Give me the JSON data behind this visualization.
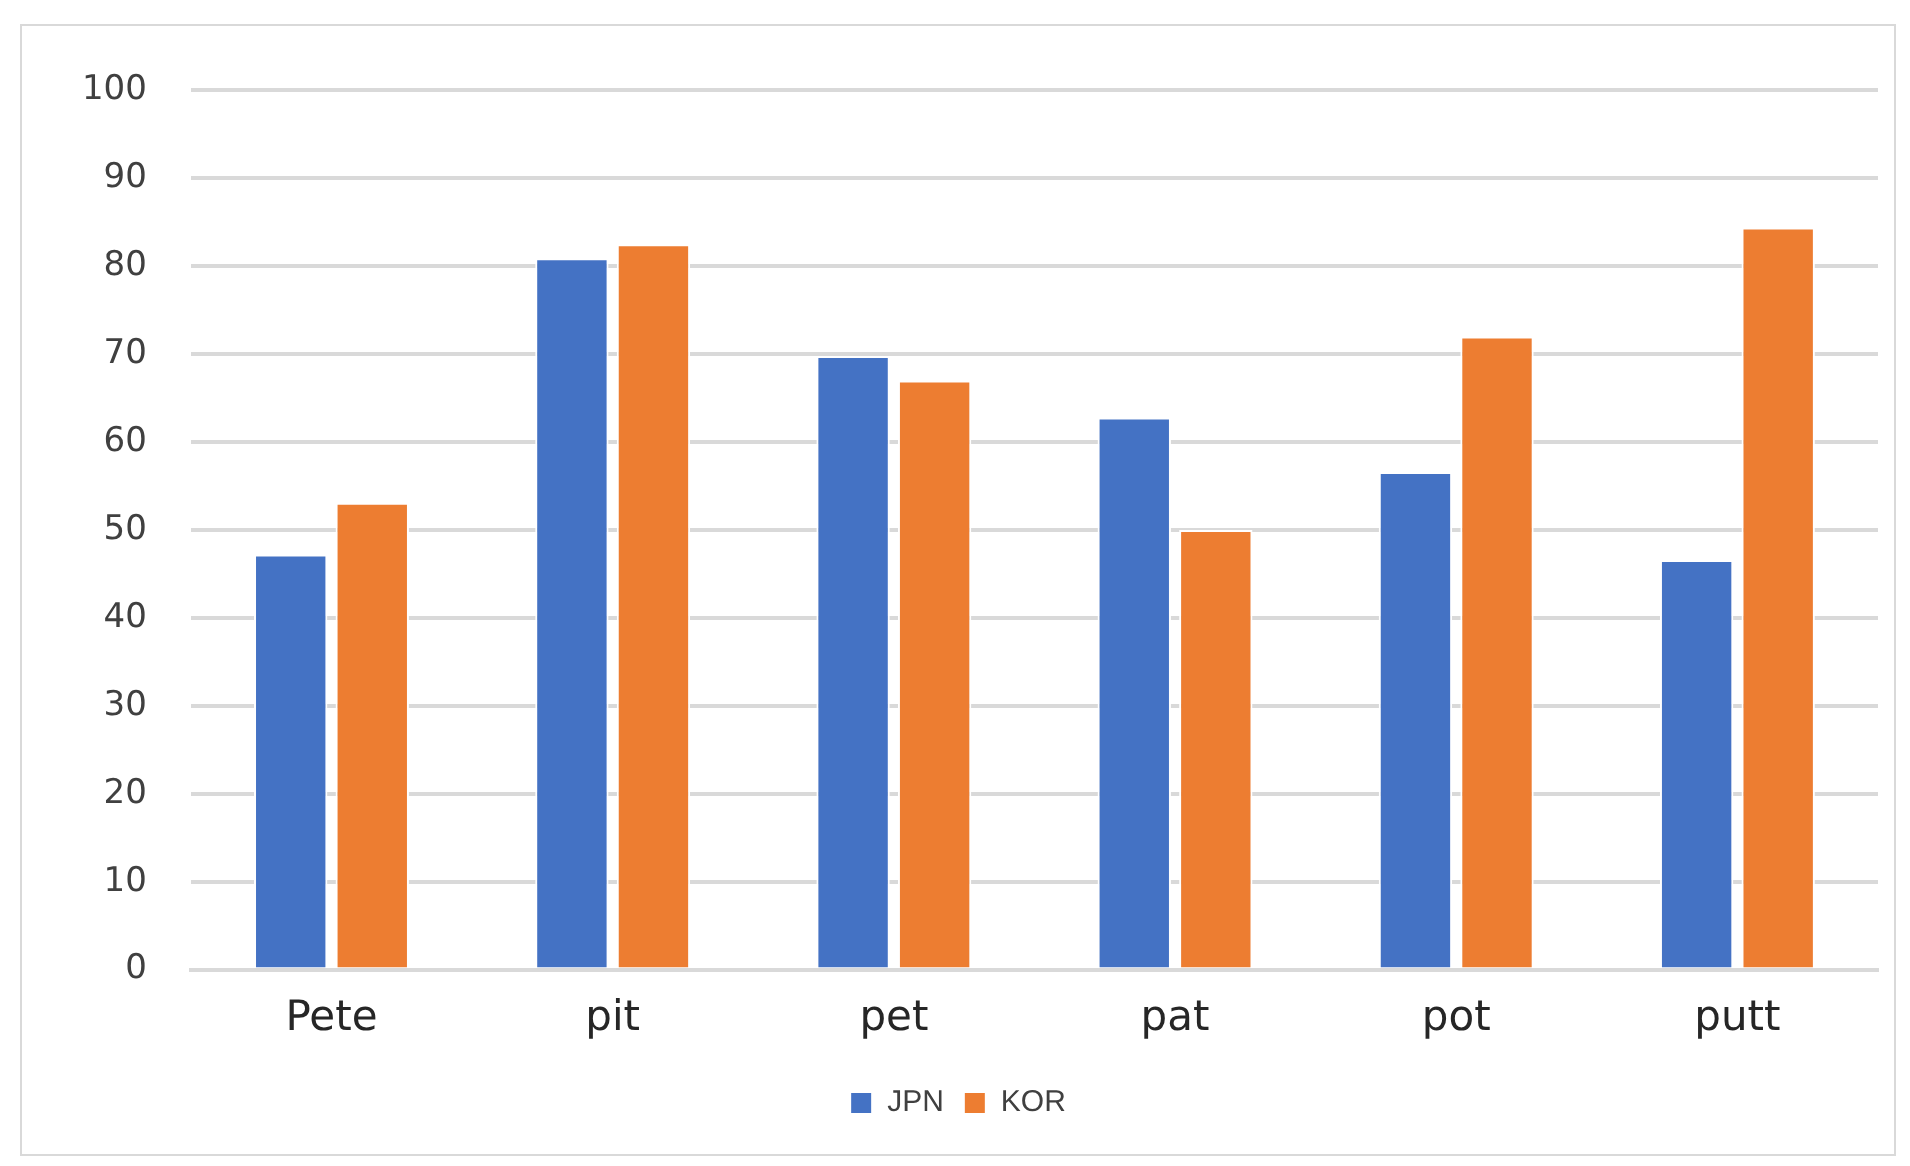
{
  "chart_data": {
    "type": "bar",
    "categories": [
      "Pete",
      "pit",
      "pet",
      "pat",
      "pot",
      "putt"
    ],
    "series": [
      {
        "name": "JPN",
        "color": "#4472c4",
        "values": [
          47.2,
          80.9,
          69.8,
          62.8,
          56.6,
          46.6
        ]
      },
      {
        "name": "KOR",
        "color": "#ed7d31",
        "values": [
          53.1,
          82.5,
          67.0,
          50.0,
          72.0,
          84.4
        ]
      }
    ],
    "ylim": [
      0,
      100
    ],
    "yticks": [
      0,
      10,
      20,
      30,
      40,
      50,
      60,
      70,
      80,
      90,
      100
    ],
    "grid": "y",
    "legend": "bottom"
  }
}
